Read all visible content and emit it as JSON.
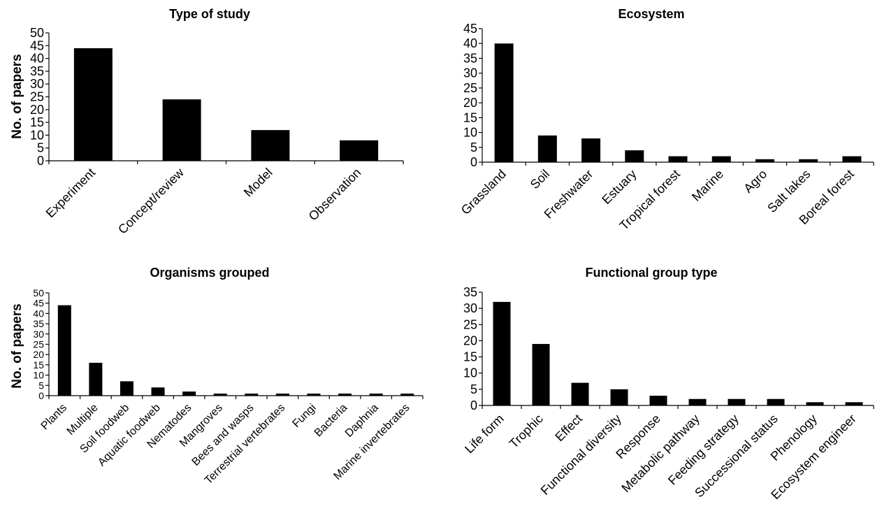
{
  "chart_data": [
    {
      "type": "bar",
      "title": "Type of study",
      "ylabel": "No. of papers",
      "xlabel": "",
      "ylim": [
        0,
        50
      ],
      "ytick_step": 5,
      "categories": [
        "Experiment",
        "Concept/review",
        "Model",
        "Observation"
      ],
      "values": [
        44,
        24,
        12,
        8
      ],
      "grid": false
    },
    {
      "type": "bar",
      "title": "Ecosystem",
      "ylabel": "",
      "xlabel": "",
      "ylim": [
        0,
        45
      ],
      "ytick_step": 5,
      "categories": [
        "Grassland",
        "Soil",
        "Freshwater",
        "Estuary",
        "Tropical forest",
        "Marine",
        "Agro",
        "Salt lakes",
        "Boreal forest"
      ],
      "values": [
        40,
        9,
        8,
        4,
        2,
        2,
        1,
        1,
        2
      ],
      "grid": false
    },
    {
      "type": "bar",
      "title": "Organisms grouped",
      "ylabel": "No. of papers",
      "xlabel": "",
      "ylim": [
        0,
        50
      ],
      "ytick_step": 5,
      "categories": [
        "Plants",
        "Multiple",
        "Soil foodweb",
        "Aquatic foodweb",
        "Nematodes",
        "Mangroves",
        "Bees and  wasps",
        "Terrestrial vertebrates",
        "Fungi",
        "Bacteria",
        "Daphnia",
        "Marine invertebrates"
      ],
      "values": [
        44,
        16,
        7,
        4,
        2,
        1,
        1,
        1,
        1,
        1,
        1,
        1
      ],
      "grid": false
    },
    {
      "type": "bar",
      "title": "Functional group type",
      "ylabel": "",
      "xlabel": "",
      "ylim": [
        0,
        35
      ],
      "ytick_step": 5,
      "categories": [
        "Life  form",
        "Trophic",
        "Effect",
        "Functional diversity",
        "Response",
        "Metabolic pathway",
        "Feeding strategy",
        "Successional status",
        "Phenology",
        "Ecosystem engineer"
      ],
      "values": [
        32,
        19,
        7,
        5,
        3,
        2,
        2,
        2,
        1,
        1
      ],
      "grid": false
    }
  ]
}
